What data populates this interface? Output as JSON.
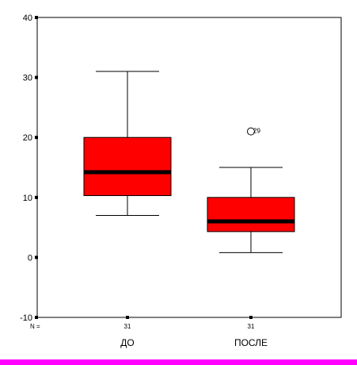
{
  "chart_data": {
    "type": "boxplot",
    "yticks": [
      -10,
      0,
      10,
      20,
      30,
      40
    ],
    "ylim": [
      -10,
      40
    ],
    "n_prefix": "N =",
    "categories": [
      "ДО",
      "ПОСЛЕ"
    ],
    "boxes": [
      {
        "category": "ДО",
        "n": "31",
        "min": 7,
        "q1": 10.3,
        "median": 14.2,
        "q3": 20,
        "max": 31,
        "outliers": []
      },
      {
        "category": "ПОСЛЕ",
        "n": "31",
        "min": 0.8,
        "q1": 4.3,
        "median": 6,
        "q3": 10,
        "max": 15,
        "outliers": [
          {
            "value": 21,
            "label": "29"
          }
        ]
      }
    ],
    "colors": {
      "box_fill": "#ff0000",
      "median": "#000000",
      "axis": "#000000",
      "bottom_bar": "#ff00ff"
    },
    "grid": false,
    "legend": false
  }
}
